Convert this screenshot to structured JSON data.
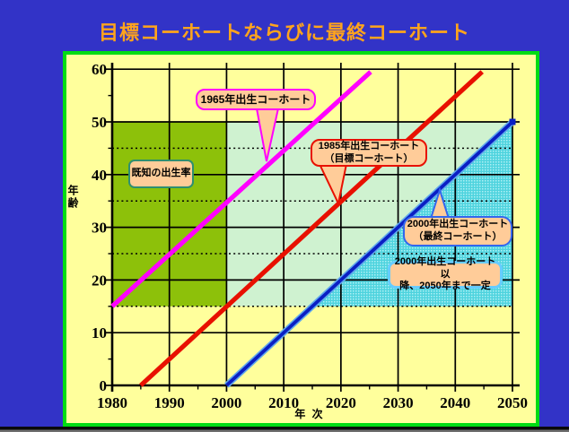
{
  "slide": {
    "title": "目標コーホートならびに最終コーホート",
    "title_color": "#FFA41C",
    "background_color": "#3233C7",
    "frame_border_color": "#00DC14",
    "chart_background_color": "#FFFF9C"
  },
  "chart_data": {
    "type": "line",
    "title": "目標コーホートならびに最終コーホート",
    "xlabel": "年 次",
    "ylabel": "年齢",
    "xlim": [
      1980,
      2050
    ],
    "ylim": [
      0,
      60
    ],
    "x_ticks": [
      1980,
      1990,
      2000,
      2010,
      2020,
      2030,
      2040,
      2050
    ],
    "y_ticks": [
      0,
      10,
      20,
      30,
      40,
      50,
      60
    ],
    "x_minor_tick_step": 5,
    "y_minor_tick_step": 5,
    "grid": true,
    "dotted_y_lines": [
      15,
      25,
      35,
      45
    ],
    "regions": [
      {
        "name": "known-birth-rate-region",
        "label": "既知の出生率",
        "color": "#8DC10A",
        "points": [
          [
            1980,
            15
          ],
          [
            2000,
            15
          ],
          [
            2000,
            50
          ],
          [
            1980,
            50
          ]
        ]
      },
      {
        "name": "target-cohort-region",
        "color": "#CFF2D0",
        "points": [
          [
            2000,
            15
          ],
          [
            2015,
            15
          ],
          [
            2050,
            50
          ],
          [
            2000,
            50
          ]
        ]
      },
      {
        "name": "final-cohort-region",
        "color": "hatch",
        "points": [
          [
            2015,
            15
          ],
          [
            2050,
            50
          ],
          [
            2050,
            15
          ]
        ]
      }
    ],
    "series": [
      {
        "name": "1965年出生コーホート",
        "color": "#FF00FF",
        "width": 5.2,
        "points": [
          [
            1980,
            15
          ],
          [
            2025.2,
            59.5
          ]
        ]
      },
      {
        "name": "1985年出生コーホート（目標コーホート）",
        "color": "#E81000",
        "width": 5.2,
        "points": [
          [
            1985,
            0
          ],
          [
            2044.7,
            59.5
          ]
        ]
      },
      {
        "name": "2000年出生コーホート（最終コーホート）",
        "color": "#0A1FC4",
        "width": 3.8,
        "underlay": "#5FA8EC",
        "underlay_width": 7,
        "end_marker": true,
        "points": [
          [
            2000,
            0
          ],
          [
            2050,
            50
          ]
        ]
      }
    ]
  },
  "callouts": {
    "c1965": {
      "text": "1965年出生コーホート",
      "border": "#FF00FF",
      "fill": "#FFCC99"
    },
    "c1985": {
      "line1": "1985年出生コーホート",
      "line2": "（目標コーホート）",
      "border": "#E81000",
      "fill": "#FFCC99"
    },
    "c2000": {
      "line1": "2000年出生コーホート",
      "line2": "（最終コーホート）",
      "border": "#3366EE",
      "fill": "#FFCC99"
    },
    "cconst": {
      "line1": "2000年出生コーホート以",
      "line2": "降、2050年まで一定",
      "border": "#66CCFF",
      "fill": "#FFCC99"
    },
    "cknown": {
      "text": "既知の出生率",
      "border": "#2F8F70",
      "fill": "#FFCC99"
    }
  }
}
